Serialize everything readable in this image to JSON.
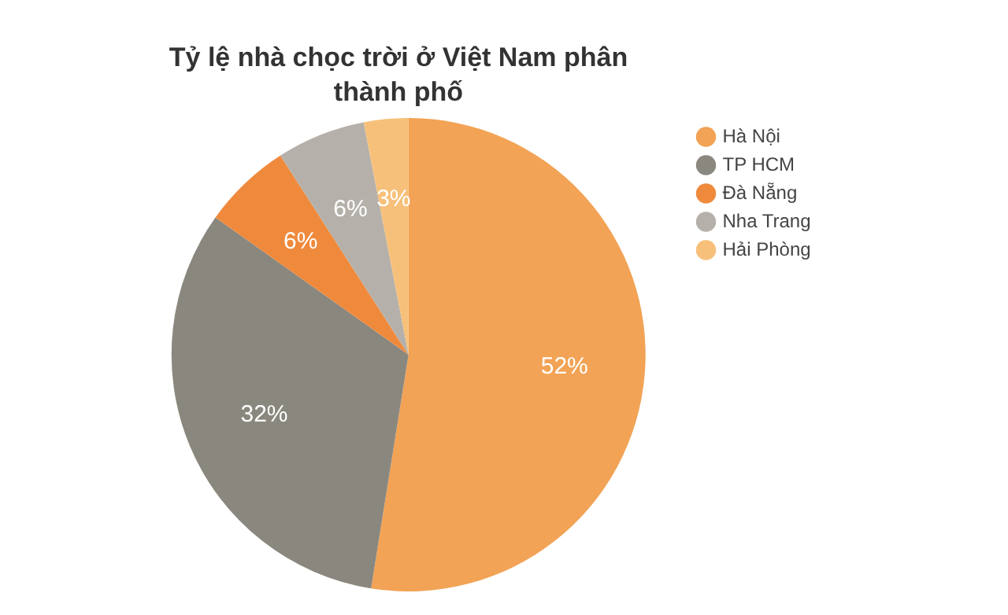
{
  "chart_data": {
    "type": "pie",
    "title": "Tỷ lệ nhà chọc trời ở Việt Nam phân thành phố",
    "categories": [
      "Hà Nội",
      "TP HCM",
      "Đà Nẵng",
      "Nha Trang",
      "Hải Phòng"
    ],
    "values": [
      52,
      32,
      6,
      6,
      3
    ],
    "value_labels": [
      "52%",
      "32%",
      "6%",
      "6%",
      "3%"
    ],
    "colors": [
      "#f2a355",
      "#8a877e",
      "#ef8a3d",
      "#b5b1aa",
      "#f7c07a"
    ],
    "legend": "top right"
  }
}
